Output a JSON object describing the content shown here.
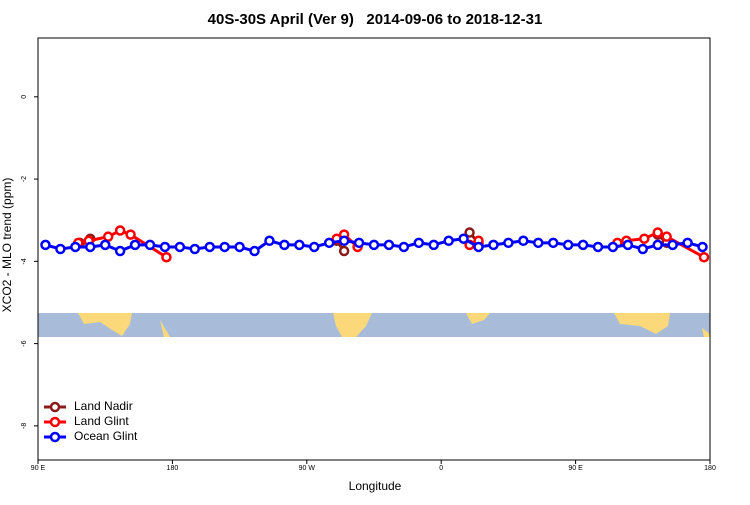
{
  "chart_data": {
    "type": "line",
    "title": "40S-30S April (Ver 9)   2014-09-06 to 2018-12-31",
    "x_label": "Longitude",
    "y_label": "XCO2 - MLO trend (ppm)",
    "xlim": [
      90,
      540
    ],
    "xticks": [
      {
        "value": 90,
        "label": "90 E"
      },
      {
        "value": 180,
        "label": "180"
      },
      {
        "value": 270,
        "label": "90 W"
      },
      {
        "value": 360,
        "label": "0"
      },
      {
        "value": 450,
        "label": "90 E"
      },
      {
        "value": 540,
        "label": "180"
      }
    ],
    "ylim": [
      -8.83,
      1.43
    ],
    "yticks": [
      0,
      -2,
      -4,
      -6,
      -8
    ],
    "legend": "bottom-left",
    "series": [
      {
        "name": "Land Nadir",
        "color": "#8b1a1a",
        "x": [
          118,
          125,
          null,
          290,
          295,
          null,
          379,
          385,
          null,
          505,
          511
        ],
        "values": [
          -3.55,
          -3.45,
          null,
          -3.5,
          -3.75,
          null,
          -3.3,
          -3.55,
          null,
          -3.35,
          -3.55
        ]
      },
      {
        "name": "Land Glint",
        "color": "#ff0000",
        "x": [
          117,
          124,
          137,
          145,
          152,
          176,
          null,
          290,
          295,
          304,
          null,
          379,
          385,
          null,
          478,
          484,
          496,
          505,
          511,
          536
        ],
        "values": [
          -3.55,
          -3.5,
          -3.4,
          -3.25,
          -3.35,
          -3.9,
          null,
          -3.45,
          -3.35,
          -3.65,
          null,
          -3.6,
          -3.5,
          null,
          -3.55,
          -3.5,
          -3.45,
          -3.3,
          -3.4,
          -3.9
        ]
      },
      {
        "name": "Ocean Glint",
        "color": "#0000ff",
        "x": [
          95,
          105,
          115,
          125,
          135,
          145,
          155,
          165,
          175,
          185,
          195,
          205,
          215,
          225,
          235,
          245,
          255,
          265,
          275,
          285,
          295,
          305,
          315,
          325,
          335,
          345,
          355,
          365,
          375,
          385,
          395,
          405,
          415,
          425,
          435,
          445,
          455,
          465,
          475,
          485,
          495,
          505,
          515,
          525,
          535
        ],
        "values": [
          -3.6,
          -3.7,
          -3.65,
          -3.65,
          -3.6,
          -3.75,
          -3.6,
          -3.6,
          -3.65,
          -3.65,
          -3.7,
          -3.65,
          -3.65,
          -3.65,
          -3.75,
          -3.5,
          -3.6,
          -3.6,
          -3.65,
          -3.55,
          -3.5,
          -3.55,
          -3.6,
          -3.6,
          -3.65,
          -3.55,
          -3.6,
          -3.5,
          -3.45,
          -3.65,
          -3.6,
          -3.55,
          -3.5,
          -3.55,
          -3.55,
          -3.6,
          -3.6,
          -3.65,
          -3.65,
          -3.6,
          -3.7,
          -3.6,
          -3.6,
          -3.55,
          -3.65
        ]
      }
    ]
  }
}
